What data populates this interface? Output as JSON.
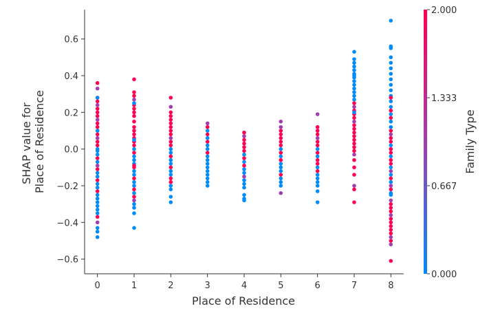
{
  "chart_data": {
    "type": "scatter",
    "subtype": "shap-dependence",
    "xlabel": "Place of Residence",
    "ylabel": [
      "SHAP value for",
      "Place of Residence"
    ],
    "x_ticks": [
      0,
      1,
      2,
      3,
      4,
      5,
      6,
      7,
      8
    ],
    "y_ticks": [
      -0.6,
      -0.4,
      -0.2,
      0.0,
      0.2,
      0.4,
      0.6
    ],
    "y_tick_labels": [
      "−0.6",
      "−0.4",
      "−0.2",
      "0.0",
      "0.2",
      "0.4",
      "0.6"
    ],
    "xlim": [
      -0.35,
      8.35
    ],
    "ylim": [
      -0.68,
      0.76
    ],
    "colorbar": {
      "label": "Family Type",
      "tick_values": [
        0.0,
        0.667,
        1.333,
        2.0
      ],
      "tick_labels": [
        "0.000",
        "0.667",
        "1.333",
        "2.000"
      ],
      "range": [
        0,
        2
      ],
      "colors": {
        "0": "#008bfb",
        "1": "#a23db0",
        "2": "#ff0052"
      }
    },
    "marker_color_by": "Family Type",
    "points": [
      [
        0,
        0.36,
        2
      ],
      [
        0,
        0.33,
        1
      ],
      [
        0,
        0.28,
        2
      ],
      [
        0,
        0.26,
        2
      ],
      [
        0,
        0.24,
        1
      ],
      [
        0,
        0.22,
        2
      ],
      [
        0,
        0.2,
        2
      ],
      [
        0,
        0.18,
        2
      ],
      [
        0,
        0.16,
        1
      ],
      [
        0,
        0.14,
        2
      ],
      [
        0,
        0.12,
        2
      ],
      [
        0,
        0.1,
        2
      ],
      [
        0,
        0.08,
        2
      ],
      [
        0,
        0.06,
        1
      ],
      [
        0,
        0.04,
        2
      ],
      [
        0,
        0.02,
        2
      ],
      [
        0,
        0.0,
        0
      ],
      [
        0,
        -0.01,
        0
      ],
      [
        0,
        -0.03,
        0
      ],
      [
        0,
        -0.05,
        2
      ],
      [
        0,
        -0.07,
        0
      ],
      [
        0,
        -0.09,
        1
      ],
      [
        0,
        -0.11,
        2
      ],
      [
        0,
        -0.13,
        0
      ],
      [
        0,
        -0.15,
        0
      ],
      [
        0,
        -0.17,
        2
      ],
      [
        0,
        -0.19,
        0
      ],
      [
        0,
        -0.21,
        0
      ],
      [
        0,
        -0.23,
        2
      ],
      [
        0,
        -0.25,
        0
      ],
      [
        0,
        -0.27,
        0
      ],
      [
        0,
        -0.29,
        0
      ],
      [
        0,
        -0.31,
        0
      ],
      [
        0,
        -0.33,
        0
      ],
      [
        0,
        -0.37,
        2
      ],
      [
        0,
        -0.4,
        1
      ],
      [
        0,
        -0.43,
        0
      ],
      [
        0,
        -0.45,
        0
      ],
      [
        0,
        -0.48,
        0
      ],
      [
        0,
        0.28,
        0
      ],
      [
        0,
        0.1,
        0
      ],
      [
        0,
        -0.35,
        0
      ],
      [
        1,
        0.38,
        2
      ],
      [
        1,
        0.31,
        2
      ],
      [
        1,
        0.29,
        2
      ],
      [
        1,
        0.27,
        1
      ],
      [
        1,
        0.24,
        2
      ],
      [
        1,
        0.22,
        2
      ],
      [
        1,
        0.2,
        2
      ],
      [
        1,
        0.18,
        2
      ],
      [
        1,
        0.15,
        2
      ],
      [
        1,
        0.12,
        2
      ],
      [
        1,
        0.1,
        2
      ],
      [
        1,
        0.08,
        2
      ],
      [
        1,
        0.06,
        2
      ],
      [
        1,
        0.04,
        2
      ],
      [
        1,
        0.02,
        2
      ],
      [
        1,
        0.0,
        0
      ],
      [
        1,
        -0.02,
        2
      ],
      [
        1,
        -0.04,
        0
      ],
      [
        1,
        -0.06,
        0
      ],
      [
        1,
        -0.08,
        0
      ],
      [
        1,
        -0.1,
        2
      ],
      [
        1,
        -0.12,
        0
      ],
      [
        1,
        -0.14,
        0
      ],
      [
        1,
        -0.16,
        2
      ],
      [
        1,
        -0.18,
        0
      ],
      [
        1,
        -0.2,
        0
      ],
      [
        1,
        -0.22,
        2
      ],
      [
        1,
        -0.24,
        0
      ],
      [
        1,
        -0.26,
        2
      ],
      [
        1,
        -0.28,
        1
      ],
      [
        1,
        -0.3,
        0
      ],
      [
        1,
        -0.32,
        0
      ],
      [
        1,
        -0.35,
        0
      ],
      [
        1,
        -0.43,
        0
      ],
      [
        1,
        0.25,
        0
      ],
      [
        1,
        0.05,
        0
      ],
      [
        1,
        -0.09,
        2
      ],
      [
        2,
        0.28,
        2
      ],
      [
        2,
        0.23,
        1
      ],
      [
        2,
        0.2,
        2
      ],
      [
        2,
        0.18,
        2
      ],
      [
        2,
        0.16,
        2
      ],
      [
        2,
        0.14,
        2
      ],
      [
        2,
        0.12,
        2
      ],
      [
        2,
        0.1,
        2
      ],
      [
        2,
        0.08,
        2
      ],
      [
        2,
        0.06,
        1
      ],
      [
        2,
        0.04,
        2
      ],
      [
        2,
        0.02,
        2
      ],
      [
        2,
        0.0,
        0
      ],
      [
        2,
        -0.02,
        0
      ],
      [
        2,
        -0.04,
        2
      ],
      [
        2,
        -0.06,
        0
      ],
      [
        2,
        -0.08,
        0
      ],
      [
        2,
        -0.1,
        2
      ],
      [
        2,
        -0.12,
        0
      ],
      [
        2,
        -0.14,
        0
      ],
      [
        2,
        -0.16,
        2
      ],
      [
        2,
        -0.18,
        2
      ],
      [
        2,
        -0.2,
        0
      ],
      [
        2,
        -0.22,
        0
      ],
      [
        2,
        -0.26,
        0
      ],
      [
        2,
        -0.29,
        0
      ],
      [
        3,
        0.14,
        1
      ],
      [
        3,
        0.12,
        2
      ],
      [
        3,
        0.1,
        0
      ],
      [
        3,
        0.08,
        2
      ],
      [
        3,
        0.06,
        0
      ],
      [
        3,
        0.04,
        2
      ],
      [
        3,
        0.02,
        0
      ],
      [
        3,
        0.0,
        0
      ],
      [
        3,
        -0.02,
        2
      ],
      [
        3,
        -0.04,
        0
      ],
      [
        3,
        -0.06,
        0
      ],
      [
        3,
        -0.08,
        0
      ],
      [
        3,
        -0.1,
        0
      ],
      [
        3,
        -0.12,
        0
      ],
      [
        3,
        -0.14,
        0
      ],
      [
        3,
        -0.16,
        0
      ],
      [
        3,
        -0.18,
        0
      ],
      [
        3,
        -0.2,
        0
      ],
      [
        4,
        0.09,
        2
      ],
      [
        4,
        0.07,
        1
      ],
      [
        4,
        0.05,
        2
      ],
      [
        4,
        0.03,
        2
      ],
      [
        4,
        0.01,
        2
      ],
      [
        4,
        -0.01,
        2
      ],
      [
        4,
        -0.03,
        0
      ],
      [
        4,
        -0.05,
        2
      ],
      [
        4,
        -0.07,
        0
      ],
      [
        4,
        -0.09,
        2
      ],
      [
        4,
        -0.11,
        0
      ],
      [
        4,
        -0.13,
        0
      ],
      [
        4,
        -0.15,
        1
      ],
      [
        4,
        -0.17,
        0
      ],
      [
        4,
        -0.19,
        0
      ],
      [
        4,
        -0.21,
        0
      ],
      [
        4,
        -0.25,
        0
      ],
      [
        4,
        -0.27,
        0
      ],
      [
        4,
        -0.28,
        0
      ],
      [
        5,
        0.15,
        1
      ],
      [
        5,
        0.12,
        1
      ],
      [
        5,
        0.1,
        2
      ],
      [
        5,
        0.08,
        2
      ],
      [
        5,
        0.06,
        2
      ],
      [
        5,
        0.04,
        2
      ],
      [
        5,
        0.02,
        2
      ],
      [
        5,
        0.0,
        0
      ],
      [
        5,
        -0.02,
        2
      ],
      [
        5,
        -0.04,
        0
      ],
      [
        5,
        -0.06,
        2
      ],
      [
        5,
        -0.08,
        0
      ],
      [
        5,
        -0.1,
        0
      ],
      [
        5,
        -0.12,
        0
      ],
      [
        5,
        -0.14,
        2
      ],
      [
        5,
        -0.16,
        0
      ],
      [
        5,
        -0.18,
        0
      ],
      [
        5,
        -0.2,
        0
      ],
      [
        5,
        -0.24,
        1
      ],
      [
        6,
        0.19,
        1
      ],
      [
        6,
        0.12,
        2
      ],
      [
        6,
        0.1,
        2
      ],
      [
        6,
        0.08,
        2
      ],
      [
        6,
        0.06,
        1
      ],
      [
        6,
        0.04,
        2
      ],
      [
        6,
        0.02,
        2
      ],
      [
        6,
        0.0,
        0
      ],
      [
        6,
        -0.02,
        2
      ],
      [
        6,
        -0.04,
        0
      ],
      [
        6,
        -0.06,
        2
      ],
      [
        6,
        -0.08,
        2
      ],
      [
        6,
        -0.1,
        0
      ],
      [
        6,
        -0.12,
        2
      ],
      [
        6,
        -0.14,
        0
      ],
      [
        6,
        -0.16,
        0
      ],
      [
        6,
        -0.18,
        0
      ],
      [
        6,
        -0.2,
        0
      ],
      [
        6,
        -0.23,
        0
      ],
      [
        6,
        -0.29,
        0
      ],
      [
        7,
        0.53,
        0
      ],
      [
        7,
        0.49,
        0
      ],
      [
        7,
        0.47,
        0
      ],
      [
        7,
        0.45,
        0
      ],
      [
        7,
        0.43,
        0
      ],
      [
        7,
        0.41,
        0
      ],
      [
        7,
        0.39,
        0
      ],
      [
        7,
        0.37,
        0
      ],
      [
        7,
        0.35,
        0
      ],
      [
        7,
        0.33,
        0
      ],
      [
        7,
        0.31,
        0
      ],
      [
        7,
        0.29,
        0
      ],
      [
        7,
        0.27,
        0
      ],
      [
        7,
        0.25,
        2
      ],
      [
        7,
        0.23,
        1
      ],
      [
        7,
        0.21,
        2
      ],
      [
        7,
        0.19,
        2
      ],
      [
        7,
        0.17,
        2
      ],
      [
        7,
        0.15,
        1
      ],
      [
        7,
        0.13,
        2
      ],
      [
        7,
        0.11,
        2
      ],
      [
        7,
        0.09,
        2
      ],
      [
        7,
        0.07,
        2
      ],
      [
        7,
        0.05,
        2
      ],
      [
        7,
        0.03,
        2
      ],
      [
        7,
        0.01,
        2
      ],
      [
        7,
        -0.01,
        2
      ],
      [
        7,
        -0.03,
        1
      ],
      [
        7,
        -0.06,
        2
      ],
      [
        7,
        -0.1,
        2
      ],
      [
        7,
        -0.14,
        2
      ],
      [
        7,
        -0.2,
        1
      ],
      [
        7,
        -0.22,
        2
      ],
      [
        7,
        -0.29,
        2
      ],
      [
        7,
        0.4,
        0
      ],
      [
        7,
        0.2,
        0
      ],
      [
        8,
        0.7,
        0
      ],
      [
        8,
        0.56,
        0
      ],
      [
        8,
        0.55,
        0
      ],
      [
        8,
        0.5,
        0
      ],
      [
        8,
        0.47,
        0
      ],
      [
        8,
        0.44,
        0
      ],
      [
        8,
        0.41,
        0
      ],
      [
        8,
        0.38,
        0
      ],
      [
        8,
        0.35,
        0
      ],
      [
        8,
        0.32,
        0
      ],
      [
        8,
        0.29,
        0
      ],
      [
        8,
        0.26,
        0
      ],
      [
        8,
        0.23,
        0
      ],
      [
        8,
        0.21,
        2
      ],
      [
        8,
        0.19,
        0
      ],
      [
        8,
        0.17,
        2
      ],
      [
        8,
        0.15,
        0
      ],
      [
        8,
        0.12,
        0
      ],
      [
        8,
        0.1,
        2
      ],
      [
        8,
        0.08,
        1
      ],
      [
        8,
        0.06,
        2
      ],
      [
        8,
        0.04,
        2
      ],
      [
        8,
        0.02,
        0
      ],
      [
        8,
        0.0,
        0
      ],
      [
        8,
        -0.02,
        2
      ],
      [
        8,
        -0.04,
        0
      ],
      [
        8,
        -0.06,
        2
      ],
      [
        8,
        -0.08,
        2
      ],
      [
        8,
        -0.1,
        0
      ],
      [
        8,
        -0.12,
        1
      ],
      [
        8,
        -0.14,
        0
      ],
      [
        8,
        -0.16,
        2
      ],
      [
        8,
        -0.18,
        0
      ],
      [
        8,
        -0.2,
        1
      ],
      [
        8,
        -0.22,
        2
      ],
      [
        8,
        -0.25,
        0
      ],
      [
        8,
        -0.28,
        1
      ],
      [
        8,
        -0.3,
        2
      ],
      [
        8,
        -0.32,
        2
      ],
      [
        8,
        -0.34,
        2
      ],
      [
        8,
        -0.36,
        1
      ],
      [
        8,
        -0.38,
        2
      ],
      [
        8,
        -0.4,
        2
      ],
      [
        8,
        -0.42,
        2
      ],
      [
        8,
        -0.44,
        2
      ],
      [
        8,
        -0.46,
        2
      ],
      [
        8,
        -0.48,
        1
      ],
      [
        8,
        -0.5,
        2
      ],
      [
        8,
        -0.52,
        1
      ],
      [
        8,
        -0.61,
        2
      ],
      [
        8,
        0.28,
        2
      ],
      [
        8,
        0.0,
        2
      ],
      [
        8,
        -0.24,
        0
      ]
    ]
  }
}
